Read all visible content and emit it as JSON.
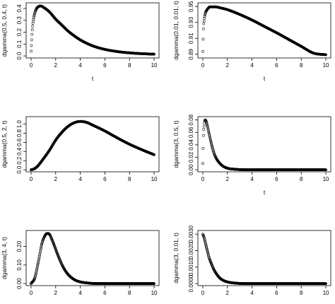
{
  "colors": {
    "ink": "#000000",
    "background": "#ffffff"
  },
  "chart_data": [
    {
      "type": "scatter",
      "marker": "open-circle",
      "xlabel": "t",
      "ylabel": "dgamma(0.5, 0.4, t)",
      "xlim": [
        0,
        10
      ],
      "ylim": [
        0,
        0.43
      ],
      "xticks": [
        0,
        2,
        4,
        6,
        8,
        10
      ],
      "yticks": [
        0.0,
        0.1,
        0.2,
        0.3,
        0.4
      ],
      "ytick_labels": [
        "0.0",
        "0.1",
        "0.2",
        "0.3",
        "0.4"
      ],
      "x": [
        0.0,
        0.1,
        0.2,
        0.4,
        0.6,
        0.8,
        1.0,
        1.5,
        2.0,
        2.5,
        3.0,
        3.5,
        4.0,
        5.0,
        6.0,
        7.0,
        8.0,
        9.0,
        10.0
      ],
      "y": [
        0.04,
        0.22,
        0.31,
        0.39,
        0.415,
        0.42,
        0.41,
        0.37,
        0.31,
        0.26,
        0.21,
        0.17,
        0.135,
        0.085,
        0.055,
        0.037,
        0.026,
        0.019,
        0.015
      ]
    },
    {
      "type": "scatter",
      "marker": "open-circle",
      "xlabel": "t",
      "ylabel": "dgamma(0.01, 0.01, t)",
      "xlim": [
        0,
        10
      ],
      "ylim": [
        0.888,
        0.952
      ],
      "xticks": [
        0,
        2,
        4,
        6,
        8,
        10
      ],
      "yticks": [
        0.89,
        0.91,
        0.93,
        0.95
      ],
      "ytick_labels": [
        "0.89",
        "0.91",
        "0.93",
        "0.95"
      ],
      "x": [
        0.0,
        0.05,
        0.1,
        0.2,
        0.4,
        0.6,
        1.0,
        1.5,
        2.0,
        3.0,
        4.0,
        5.0,
        6.0,
        7.0,
        8.0,
        9.0,
        10.0
      ],
      "y": [
        0.8935,
        0.922,
        0.932,
        0.941,
        0.947,
        0.9495,
        0.9495,
        0.948,
        0.946,
        0.94,
        0.933,
        0.925,
        0.917,
        0.9085,
        0.9,
        0.8915,
        0.8895
      ]
    },
    {
      "type": "scatter",
      "marker": "open-circle",
      "xlabel": "",
      "ylabel": "dgamma(0.5, 2, t)",
      "xlim": [
        0,
        10
      ],
      "ylim": [
        0,
        1.12
      ],
      "xticks": [
        0,
        2,
        4,
        6,
        8,
        10
      ],
      "yticks": [
        0.0,
        0.2,
        0.4,
        0.6,
        0.8,
        1.0
      ],
      "ytick_labels": [
        "0.0",
        "0.2",
        "0.4",
        "0.6",
        "0.8",
        "1.0"
      ],
      "x": [
        0.0,
        0.25,
        0.5,
        1.0,
        1.5,
        2.0,
        2.5,
        3.0,
        3.5,
        4.0,
        4.5,
        5.0,
        6.0,
        7.0,
        8.0,
        9.0,
        10.0
      ],
      "y": [
        0.0,
        0.02,
        0.07,
        0.24,
        0.43,
        0.65,
        0.82,
        0.95,
        1.03,
        1.06,
        1.04,
        0.98,
        0.85,
        0.7,
        0.56,
        0.44,
        0.33
      ]
    },
    {
      "type": "scatter",
      "marker": "open-circle",
      "xlabel": "t",
      "ylabel": "dgamma(3, 0.5, t)",
      "xlim": [
        0,
        10
      ],
      "ylim": [
        0,
        0.082
      ],
      "xticks": [
        0,
        2,
        4,
        6,
        8,
        10
      ],
      "yticks": [
        0.0,
        0.02,
        0.04,
        0.06,
        0.08
      ],
      "ytick_labels": [
        "0.00",
        "0.02",
        "0.04",
        "0.06",
        "0.08"
      ],
      "x": [
        0.0,
        0.05,
        0.1,
        0.15,
        0.2,
        0.3,
        0.4,
        0.6,
        0.8,
        1.0,
        1.5,
        2.0,
        2.5,
        3.0,
        4.0,
        6.0,
        8.0,
        10.0
      ],
      "y": [
        0.01,
        0.055,
        0.07,
        0.078,
        0.08,
        0.076,
        0.068,
        0.05,
        0.034,
        0.022,
        0.008,
        0.0025,
        0.001,
        0.0003,
        0.0,
        0.0,
        0.0,
        0.0
      ]
    },
    {
      "type": "scatter",
      "marker": "open-circle",
      "xlabel": "",
      "ylabel": "dgamma(3, 4, t)",
      "xlim": [
        0,
        10
      ],
      "ylim": [
        0,
        0.275
      ],
      "xticks": [
        0,
        2,
        4,
        6,
        8,
        10
      ],
      "yticks": [
        0.0,
        0.1,
        0.2
      ],
      "ytick_labels": [
        "0.00",
        "0.10",
        "0.20"
      ],
      "x": [
        0.0,
        0.3,
        0.6,
        0.9,
        1.2,
        1.35,
        1.5,
        1.8,
        2.2,
        2.6,
        3.0,
        3.5,
        4.0,
        4.5,
        5.0,
        6.0,
        8.0,
        10.0
      ],
      "y": [
        0.0,
        0.03,
        0.12,
        0.22,
        0.265,
        0.27,
        0.265,
        0.22,
        0.15,
        0.09,
        0.05,
        0.022,
        0.009,
        0.004,
        0.001,
        0.0,
        0.0,
        0.0
      ]
    },
    {
      "type": "scatter",
      "marker": "open-circle",
      "xlabel": "",
      "ylabel": "dgamma(3, 0.01, t)",
      "xlim": [
        0,
        10
      ],
      "ylim": [
        0,
        0.0031
      ],
      "xticks": [
        0,
        2,
        4,
        6,
        8,
        10
      ],
      "yticks": [
        0.0,
        0.001,
        0.002,
        0.003
      ],
      "ytick_labels": [
        "0.0000",
        "0.0010",
        "0.0020",
        "0.0030"
      ],
      "x": [
        0.0,
        0.1,
        0.2,
        0.3,
        0.4,
        0.5,
        0.7,
        0.9,
        1.1,
        1.3,
        1.6,
        2.0,
        2.5,
        3.0,
        4.0,
        6.0,
        8.0,
        10.0
      ],
      "y": [
        0.003,
        0.0028,
        0.0025,
        0.0022,
        0.0019,
        0.0016,
        0.0012,
        0.00085,
        0.0006,
        0.0004,
        0.00022,
        0.0001,
        4e-05,
        1e-05,
        0.0,
        0.0,
        0.0,
        0.0
      ]
    }
  ]
}
